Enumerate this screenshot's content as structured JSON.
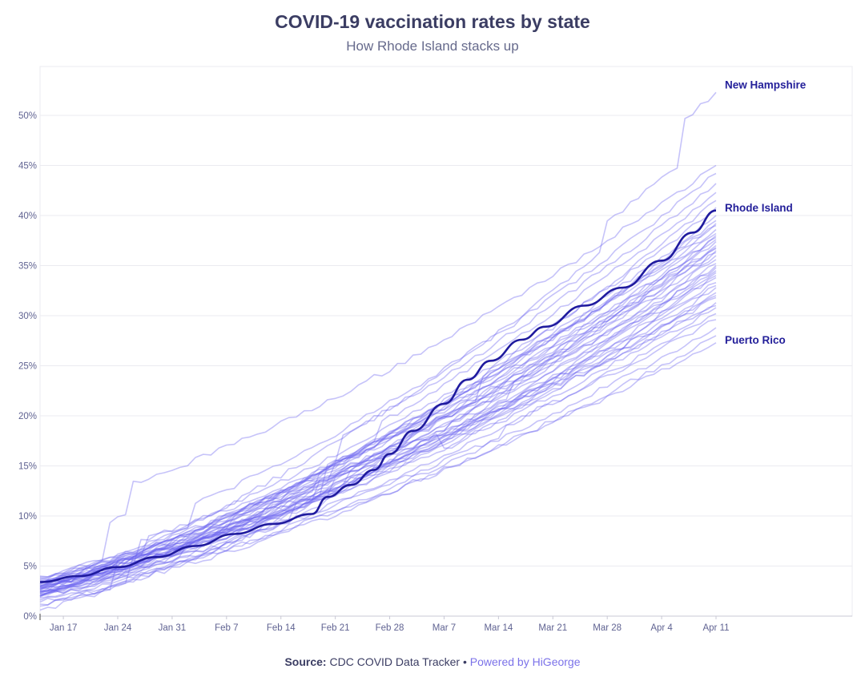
{
  "chart_data": {
    "type": "line",
    "title": "COVID-19 vaccination rates by state",
    "subtitle": "How Rhode Island stacks up",
    "xlabel": "",
    "ylabel": "",
    "x_range_days": [
      0,
      87
    ],
    "ylim": [
      0,
      53
    ],
    "x_ticks": [
      {
        "day": 3,
        "label": "Jan 17"
      },
      {
        "day": 10,
        "label": "Jan 24"
      },
      {
        "day": 17,
        "label": "Jan 31"
      },
      {
        "day": 24,
        "label": "Feb 7"
      },
      {
        "day": 31,
        "label": "Feb 14"
      },
      {
        "day": 38,
        "label": "Feb 21"
      },
      {
        "day": 45,
        "label": "Feb 28"
      },
      {
        "day": 52,
        "label": "Mar 7"
      },
      {
        "day": 59,
        "label": "Mar 14"
      },
      {
        "day": 66,
        "label": "Mar 21"
      },
      {
        "day": 73,
        "label": "Mar 28"
      },
      {
        "day": 80,
        "label": "Apr 4"
      },
      {
        "day": 87,
        "label": "Apr 11"
      }
    ],
    "y_ticks": [
      {
        "value": 0,
        "label": "0%"
      },
      {
        "value": 5,
        "label": "5%"
      },
      {
        "value": 10,
        "label": "10%"
      },
      {
        "value": 15,
        "label": "15%"
      },
      {
        "value": 20,
        "label": "20%"
      },
      {
        "value": 25,
        "label": "25%"
      },
      {
        "value": 30,
        "label": "30%"
      },
      {
        "value": 35,
        "label": "35%"
      },
      {
        "value": 40,
        "label": "40%"
      },
      {
        "value": 45,
        "label": "45%"
      },
      {
        "value": 50,
        "label": "50%"
      }
    ],
    "grid": true,
    "highlight": {
      "name": "Rhode Island",
      "x": [
        0,
        5,
        10,
        15,
        20,
        25,
        30,
        35,
        37,
        40,
        43,
        45,
        48,
        52,
        55,
        58,
        62,
        65,
        70,
        75,
        80,
        84,
        87
      ],
      "y": [
        3.4,
        4.0,
        4.9,
        5.9,
        7.0,
        8.2,
        9.2,
        10.2,
        11.9,
        13.1,
        14.6,
        16.2,
        18.5,
        21.2,
        23.6,
        25.5,
        27.6,
        28.9,
        31.0,
        32.8,
        35.5,
        38.3,
        40.5
      ],
      "color": "#1f1a9e"
    },
    "states": [
      {
        "name": "New Hampshire",
        "start": 3.0,
        "end": 52.3,
        "jumps": [
          [
            73,
            2.5
          ],
          [
            83,
            4.0
          ]
        ]
      },
      {
        "name": "Puerto Rico",
        "start": 2.0,
        "end": 27.3,
        "jumps": []
      },
      {
        "name": "s03",
        "start": 4.0,
        "end": 45.0,
        "jumps": [
          [
            9,
            3.5
          ],
          [
            12,
            3.0
          ]
        ]
      },
      {
        "name": "s04",
        "start": 3.5,
        "end": 44.2,
        "jumps": [
          [
            20,
            2.0
          ]
        ]
      },
      {
        "name": "s05",
        "start": 2.8,
        "end": 43.2,
        "jumps": [
          [
            39,
            2.5
          ]
        ]
      },
      {
        "name": "s06",
        "start": 3.2,
        "end": 42.3,
        "jumps": [
          [
            44,
            1.5
          ]
        ]
      },
      {
        "name": "s07",
        "start": 2.5,
        "end": 41.5,
        "jumps": []
      },
      {
        "name": "s08",
        "start": 3.0,
        "end": 40.8,
        "jumps": [
          [
            14,
            1.5
          ]
        ]
      },
      {
        "name": "s09",
        "start": 2.6,
        "end": 40.0,
        "jumps": [
          [
            38,
            1.5
          ]
        ]
      },
      {
        "name": "s10",
        "start": 3.8,
        "end": 39.5,
        "jumps": []
      },
      {
        "name": "s11",
        "start": 2.2,
        "end": 39.0,
        "jumps": [
          [
            13,
            2.5
          ]
        ]
      },
      {
        "name": "s12",
        "start": 3.1,
        "end": 38.6,
        "jumps": []
      },
      {
        "name": "s13",
        "start": 2.9,
        "end": 38.2,
        "jumps": [
          [
            57,
            2.0
          ]
        ]
      },
      {
        "name": "s14",
        "start": 3.4,
        "end": 37.8,
        "jumps": []
      },
      {
        "name": "s15",
        "start": 2.4,
        "end": 37.4,
        "jumps": [
          [
            36,
            1.2
          ]
        ]
      },
      {
        "name": "s16",
        "start": 3.0,
        "end": 37.0,
        "jumps": []
      },
      {
        "name": "s17",
        "start": 2.7,
        "end": 36.7,
        "jumps": [
          [
            48,
            1.0
          ]
        ]
      },
      {
        "name": "s18",
        "start": 3.6,
        "end": 36.3,
        "jumps": []
      },
      {
        "name": "s19",
        "start": 2.3,
        "end": 36.0,
        "jumps": [
          [
            61,
            1.3
          ]
        ]
      },
      {
        "name": "s20",
        "start": 3.2,
        "end": 35.6,
        "jumps": []
      },
      {
        "name": "s21",
        "start": 2.8,
        "end": 35.2,
        "jumps": [
          [
            29,
            1.0
          ]
        ]
      },
      {
        "name": "s22",
        "start": 2.5,
        "end": 34.8,
        "jumps": []
      },
      {
        "name": "s23",
        "start": 3.3,
        "end": 34.3,
        "jumps": [
          [
            40,
            1.0
          ]
        ]
      },
      {
        "name": "s24",
        "start": 2.6,
        "end": 33.8,
        "jumps": []
      },
      {
        "name": "s25",
        "start": 2.1,
        "end": 33.3,
        "jumps": [
          [
            19,
            1.5
          ]
        ]
      },
      {
        "name": "s26",
        "start": 3.0,
        "end": 32.8,
        "jumps": []
      },
      {
        "name": "s27",
        "start": 2.4,
        "end": 32.3,
        "jumps": [
          [
            52,
            -2.0
          ]
        ]
      },
      {
        "name": "s28",
        "start": 2.9,
        "end": 31.8,
        "jumps": []
      },
      {
        "name": "s29",
        "start": 2.2,
        "end": 31.3,
        "jumps": [
          [
            33,
            1.0
          ]
        ]
      },
      {
        "name": "s30",
        "start": 2.7,
        "end": 30.8,
        "jumps": []
      },
      {
        "name": "s31",
        "start": 2.0,
        "end": 30.2,
        "jumps": []
      },
      {
        "name": "s32",
        "start": 2.5,
        "end": 29.6,
        "jumps": [
          [
            60,
            1.0
          ]
        ]
      },
      {
        "name": "s33",
        "start": 1.8,
        "end": 28.8,
        "jumps": []
      },
      {
        "name": "s34",
        "start": 1.6,
        "end": 28.0,
        "jumps": []
      },
      {
        "name": "s35",
        "start": 1.2,
        "end": 33.0,
        "jumps": [
          [
            10,
            2.5
          ]
        ]
      },
      {
        "name": "s36",
        "start": 1.0,
        "end": 35.0,
        "jumps": []
      },
      {
        "name": "s37",
        "start": 0.6,
        "end": 38.0,
        "jumps": []
      },
      {
        "name": "s38",
        "start": 1.4,
        "end": 32.0,
        "jumps": [
          [
            12,
            2.5
          ],
          [
            36,
            2.0
          ]
        ]
      },
      {
        "name": "s39",
        "start": 3.9,
        "end": 36.5,
        "jumps": []
      },
      {
        "name": "s40",
        "start": 3.7,
        "end": 34.5,
        "jumps": [
          [
            37,
            3.0
          ]
        ]
      },
      {
        "name": "s41",
        "start": 2.0,
        "end": 36.8,
        "jumps": []
      },
      {
        "name": "s42",
        "start": 3.5,
        "end": 31.0,
        "jumps": [
          [
            38,
            1.5
          ]
        ]
      },
      {
        "name": "s43",
        "start": 2.9,
        "end": 39.2,
        "jumps": []
      },
      {
        "name": "s44",
        "start": 2.3,
        "end": 37.6,
        "jumps": [
          [
            25,
            1.0
          ]
        ]
      },
      {
        "name": "s45",
        "start": 1.9,
        "end": 34.0,
        "jumps": []
      }
    ],
    "labels": [
      {
        "text": "New Hampshire",
        "series": "New Hampshire",
        "value": 52.3
      },
      {
        "text": "Rhode Island",
        "series": "Rhode Island",
        "value": 40.5
      },
      {
        "text": "Puerto Rico",
        "series": "Puerto Rico",
        "value": 27.3
      }
    ]
  },
  "footer": {
    "source_label": "Source:",
    "source_text": "CDC COVID Data Tracker",
    "separator": "•",
    "powered_by": "Powered by HiGeorge"
  },
  "colors": {
    "state_line": "#6a60f0",
    "highlight_line": "#1f1a9e",
    "grid": "#ebebf0",
    "axis_text": "#606392",
    "title": "#3b3d63",
    "link": "#7b72e9"
  }
}
